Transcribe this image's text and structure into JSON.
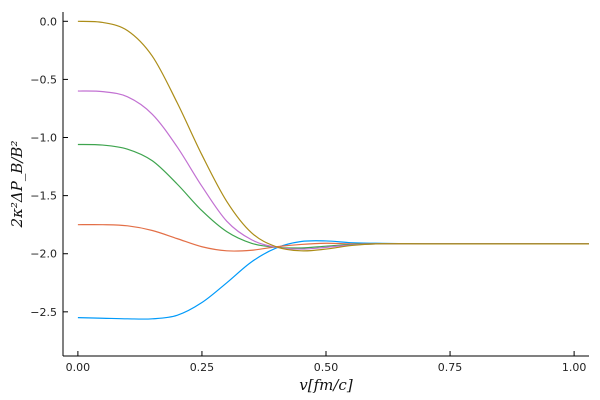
{
  "chart_data": {
    "type": "line",
    "title": "",
    "xlabel": "v[fm/c]",
    "ylabel": "2κ²ΔP_B/B²",
    "xlim": [
      -0.03,
      1.03
    ],
    "ylim": [
      -2.88,
      0.08
    ],
    "grid": false,
    "legend": "none",
    "x_ticks": [
      {
        "value": 0.0,
        "label": "0.00"
      },
      {
        "value": 0.25,
        "label": "0.25"
      },
      {
        "value": 0.5,
        "label": "0.50"
      },
      {
        "value": 0.75,
        "label": "0.75"
      },
      {
        "value": 1.0,
        "label": "1.00"
      }
    ],
    "y_ticks": [
      {
        "value": 0.0,
        "label": "0.0"
      },
      {
        "value": -0.5,
        "label": "−0.5"
      },
      {
        "value": -1.0,
        "label": "−1.0"
      },
      {
        "value": -1.5,
        "label": "−1.5"
      },
      {
        "value": -2.0,
        "label": "−2.0"
      },
      {
        "value": -2.5,
        "label": "−2.5"
      }
    ],
    "series": [
      {
        "color": "#009AFA",
        "x": [
          0,
          0.05,
          0.1,
          0.15,
          0.2,
          0.25,
          0.3,
          0.35,
          0.4,
          0.45,
          0.5,
          0.55,
          0.6,
          0.7,
          0.8,
          0.9,
          1.03
        ],
        "y": [
          -2.55,
          -2.555,
          -2.56,
          -2.56,
          -2.53,
          -2.42,
          -2.25,
          -2.07,
          -1.95,
          -1.895,
          -1.89,
          -1.905,
          -1.91,
          -1.915,
          -1.915,
          -1.915,
          -1.915
        ]
      },
      {
        "color": "#E36F47",
        "x": [
          0,
          0.05,
          0.1,
          0.15,
          0.2,
          0.25,
          0.3,
          0.35,
          0.4,
          0.45,
          0.5,
          0.55,
          0.6,
          0.7,
          0.8,
          0.9,
          1.03
        ],
        "y": [
          -1.75,
          -1.75,
          -1.76,
          -1.8,
          -1.87,
          -1.94,
          -1.975,
          -1.97,
          -1.94,
          -1.92,
          -1.91,
          -1.915,
          -1.915,
          -1.915,
          -1.915,
          -1.915,
          -1.915
        ]
      },
      {
        "color": "#3EA44E",
        "x": [
          0,
          0.05,
          0.1,
          0.15,
          0.2,
          0.25,
          0.3,
          0.35,
          0.4,
          0.45,
          0.5,
          0.55,
          0.6,
          0.7,
          0.8,
          0.9,
          1.03
        ],
        "y": [
          -1.06,
          -1.065,
          -1.1,
          -1.2,
          -1.4,
          -1.63,
          -1.81,
          -1.91,
          -1.945,
          -1.95,
          -1.935,
          -1.92,
          -1.915,
          -1.915,
          -1.915,
          -1.915,
          -1.915
        ]
      },
      {
        "color": "#C271D2",
        "x": [
          0,
          0.05,
          0.1,
          0.15,
          0.2,
          0.25,
          0.3,
          0.35,
          0.4,
          0.45,
          0.5,
          0.55,
          0.6,
          0.7,
          0.8,
          0.9,
          1.03
        ],
        "y": [
          -0.6,
          -0.605,
          -0.65,
          -0.8,
          -1.08,
          -1.42,
          -1.72,
          -1.88,
          -1.945,
          -1.96,
          -1.945,
          -1.925,
          -1.915,
          -1.915,
          -1.915,
          -1.915,
          -1.915
        ]
      },
      {
        "color": "#AC8D18",
        "x": [
          0,
          0.05,
          0.1,
          0.15,
          0.2,
          0.25,
          0.3,
          0.35,
          0.4,
          0.45,
          0.5,
          0.55,
          0.6,
          0.7,
          0.8,
          0.9,
          1.03
        ],
        "y": [
          0.0,
          -0.01,
          -0.08,
          -0.3,
          -0.7,
          -1.15,
          -1.55,
          -1.82,
          -1.94,
          -1.975,
          -1.96,
          -1.93,
          -1.915,
          -1.915,
          -1.915,
          -1.915,
          -1.915
        ]
      }
    ]
  }
}
